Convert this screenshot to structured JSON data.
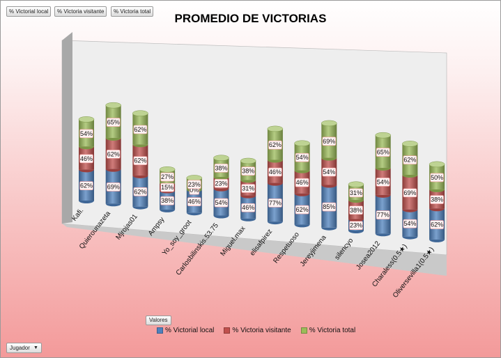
{
  "filters": [
    "% Victorial local",
    "% Victoria visitante",
    "% Victoria total"
  ],
  "values_button": "Valores",
  "row_filter": "Jugador",
  "chart_data": {
    "type": "bar",
    "stacked": true,
    "three_d": true,
    "title": "PROMEDIO DE VICTORIAS",
    "categories": [
      "Kafi.",
      "Quierounazeta",
      "Mjrojas01",
      "Ampsy",
      "Yo_soy_groot",
      "Carlosbilinskis.53.75",
      "Miguel.max",
      "elisafpirez",
      "Respetuoso",
      "Jereyjimena",
      "silencyo",
      "Josea2012",
      "Charaless(0.5★)",
      "Oliversevilla1(0.5★)"
    ],
    "series": [
      {
        "name": "% Victorial local",
        "color": "#4f81bd",
        "values": [
          62,
          69,
          62,
          38,
          46,
          54,
          46,
          77,
          62,
          85,
          23,
          77,
          54,
          62
        ]
      },
      {
        "name": "% Victoria visitante",
        "color": "#c0504d",
        "values": [
          46,
          62,
          62,
          15,
          0,
          23,
          31,
          46,
          46,
          54,
          38,
          54,
          69,
          38
        ]
      },
      {
        "name": "% Victoria total",
        "color": "#9bbb59",
        "values": [
          54,
          65,
          62,
          27,
          23,
          38,
          38,
          62,
          54,
          69,
          31,
          65,
          62,
          50
        ]
      }
    ],
    "legend_position": "bottom"
  }
}
